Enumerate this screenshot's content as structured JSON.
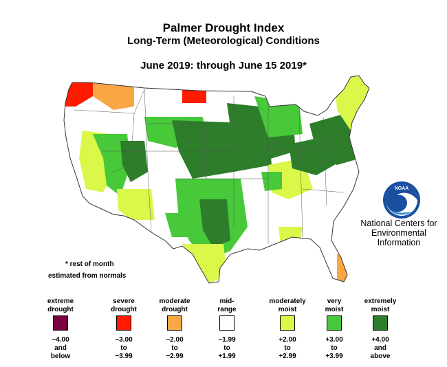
{
  "title": "Palmer Drought Index",
  "subtitle": "Long-Term (Meteorological) Conditions",
  "period": "June 2019: through June 15 2019*",
  "notes": [
    "* rest of month",
    "estimated from normals"
  ],
  "organization": {
    "logo_text": "NOAA",
    "lines": [
      "National Centers for",
      "Environmental",
      "Information"
    ]
  },
  "legend": [
    {
      "category": "extreme drought",
      "label_lines": [
        "extreme",
        "drought"
      ],
      "range_lines": [
        "−4.00",
        "and",
        "below"
      ],
      "color": "#7b0040"
    },
    {
      "category": "severe drought",
      "label_lines": [
        "severe",
        "drought"
      ],
      "range_lines": [
        "−3.00",
        "to",
        "−3.99"
      ],
      "color": "#ff1a00"
    },
    {
      "category": "moderate drought",
      "label_lines": [
        "moderate",
        "drought"
      ],
      "range_lines": [
        "−2.00",
        "to",
        "−2.99"
      ],
      "color": "#f9a645"
    },
    {
      "category": "mid-range",
      "label_lines": [
        "mid-",
        "range"
      ],
      "range_lines": [
        "−1.99",
        "to",
        "+1.99"
      ],
      "color": "#ffffff"
    },
    {
      "category": "moderately moist",
      "label_lines": [
        "moderately",
        "moist"
      ],
      "range_lines": [
        "+2.00",
        "to",
        "+2.99"
      ],
      "color": "#d9f84a"
    },
    {
      "category": "very moist",
      "label_lines": [
        "very",
        "moist"
      ],
      "range_lines": [
        "+3.00",
        "to",
        "+3.99"
      ],
      "color": "#47c93a"
    },
    {
      "category": "extremely moist",
      "label_lines": [
        "extremely",
        "moist"
      ],
      "range_lines": [
        "+4.00",
        "and",
        "above"
      ],
      "color": "#2d7d2a"
    }
  ],
  "regions": [
    {
      "name": "pacific-northwest-coast",
      "category": "severe drought"
    },
    {
      "name": "washington-oregon-interior",
      "category": "moderate drought"
    },
    {
      "name": "north-dakota-northeast",
      "category": "severe drought"
    },
    {
      "name": "northern-rockies",
      "category": "mid-range"
    },
    {
      "name": "california-interior",
      "category": "moderately moist"
    },
    {
      "name": "great-basin",
      "category": "very moist"
    },
    {
      "name": "utah-central",
      "category": "extremely moist"
    },
    {
      "name": "southwest-arizona",
      "category": "mid-range"
    },
    {
      "name": "arizona-east",
      "category": "moderately moist"
    },
    {
      "name": "colorado-plateau",
      "category": "mid-range"
    },
    {
      "name": "northern-plains",
      "category": "very moist"
    },
    {
      "name": "central-plains",
      "category": "extremely moist"
    },
    {
      "name": "southern-plains-texas",
      "category": "very moist"
    },
    {
      "name": "oklahoma-texas-core",
      "category": "extremely moist"
    },
    {
      "name": "south-texas",
      "category": "moderately moist"
    },
    {
      "name": "midwest",
      "category": "extremely moist"
    },
    {
      "name": "great-lakes",
      "category": "very moist"
    },
    {
      "name": "ohio-valley",
      "category": "extremely moist"
    },
    {
      "name": "southeast",
      "category": "mid-range"
    },
    {
      "name": "mid-south",
      "category": "moderately moist"
    },
    {
      "name": "appalachians-mid-atlantic",
      "category": "extremely moist"
    },
    {
      "name": "new-england",
      "category": "moderately moist"
    },
    {
      "name": "florida-east-coast",
      "category": "moderate drought"
    }
  ]
}
